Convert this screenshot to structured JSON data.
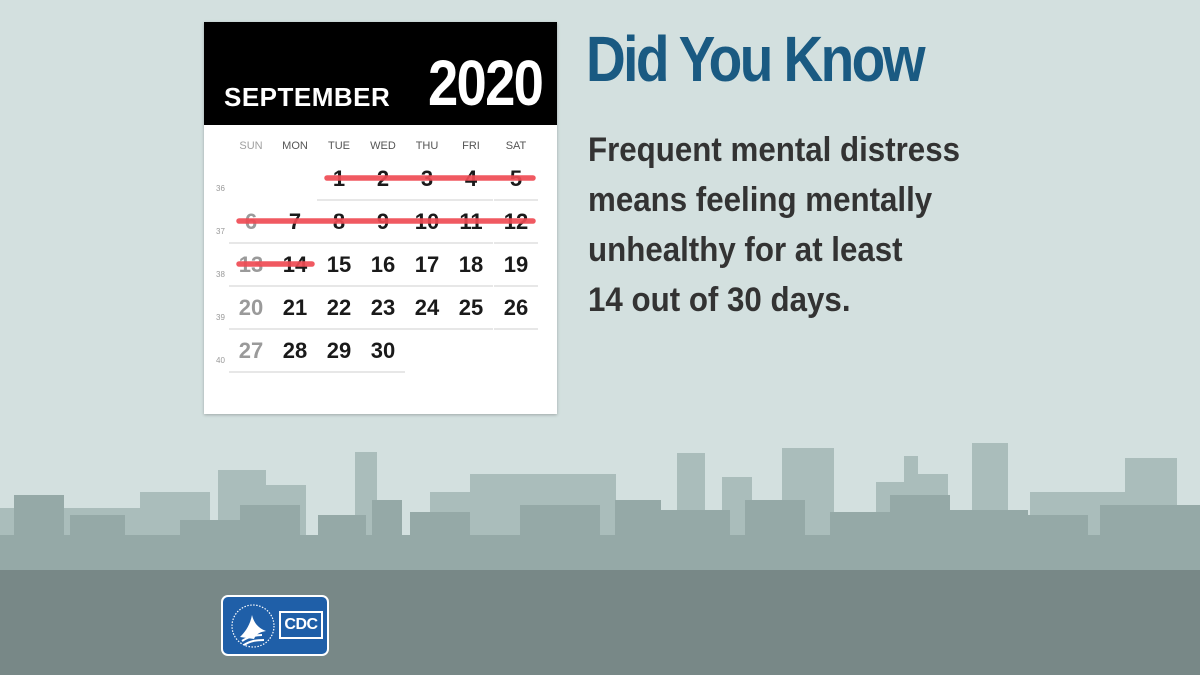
{
  "calendar": {
    "month": "SEPTEMBER",
    "year": "2020",
    "weekdays": [
      "SUN",
      "MON",
      "TUE",
      "WED",
      "THU",
      "FRI",
      "SAT"
    ],
    "weeks": [
      {
        "number": "36",
        "days": [
          "",
          "",
          "1",
          "2",
          "3",
          "4",
          "5"
        ]
      },
      {
        "number": "37",
        "days": [
          "6",
          "7",
          "8",
          "9",
          "10",
          "11",
          "12"
        ]
      },
      {
        "number": "38",
        "days": [
          "13",
          "14",
          "15",
          "16",
          "17",
          "18",
          "19"
        ]
      },
      {
        "number": "39",
        "days": [
          "20",
          "21",
          "22",
          "23",
          "24",
          "25",
          "26"
        ]
      },
      {
        "number": "40",
        "days": [
          "27",
          "28",
          "29",
          "30",
          "",
          "",
          ""
        ]
      }
    ],
    "crossed_out_days": [
      "1",
      "2",
      "3",
      "4",
      "5",
      "6",
      "7",
      "8",
      "9",
      "10",
      "11",
      "12",
      "13",
      "14"
    ],
    "sunday_color": "#9a9a9a",
    "strike_color": "#ef4b54"
  },
  "headline": "Did You Know",
  "body": {
    "line1": "Frequent mental distress",
    "line2": "means feeling mentally",
    "line3": "unhealthy for at least",
    "line4_num1": "14",
    "line4_mid": " out of ",
    "line4_num2": "30",
    "line4_end": " days."
  },
  "logo": {
    "icon": "hhs-eagle-seal-icon",
    "text": "CDC"
  },
  "colors": {
    "background": "#d3e0df",
    "skyline_back": "#a9bcba",
    "skyline_front": "#93a7a5",
    "ground": "#788887",
    "headline": "#1a5a82",
    "body_text": "#333333",
    "logo_blue": "#1f5fa8"
  }
}
